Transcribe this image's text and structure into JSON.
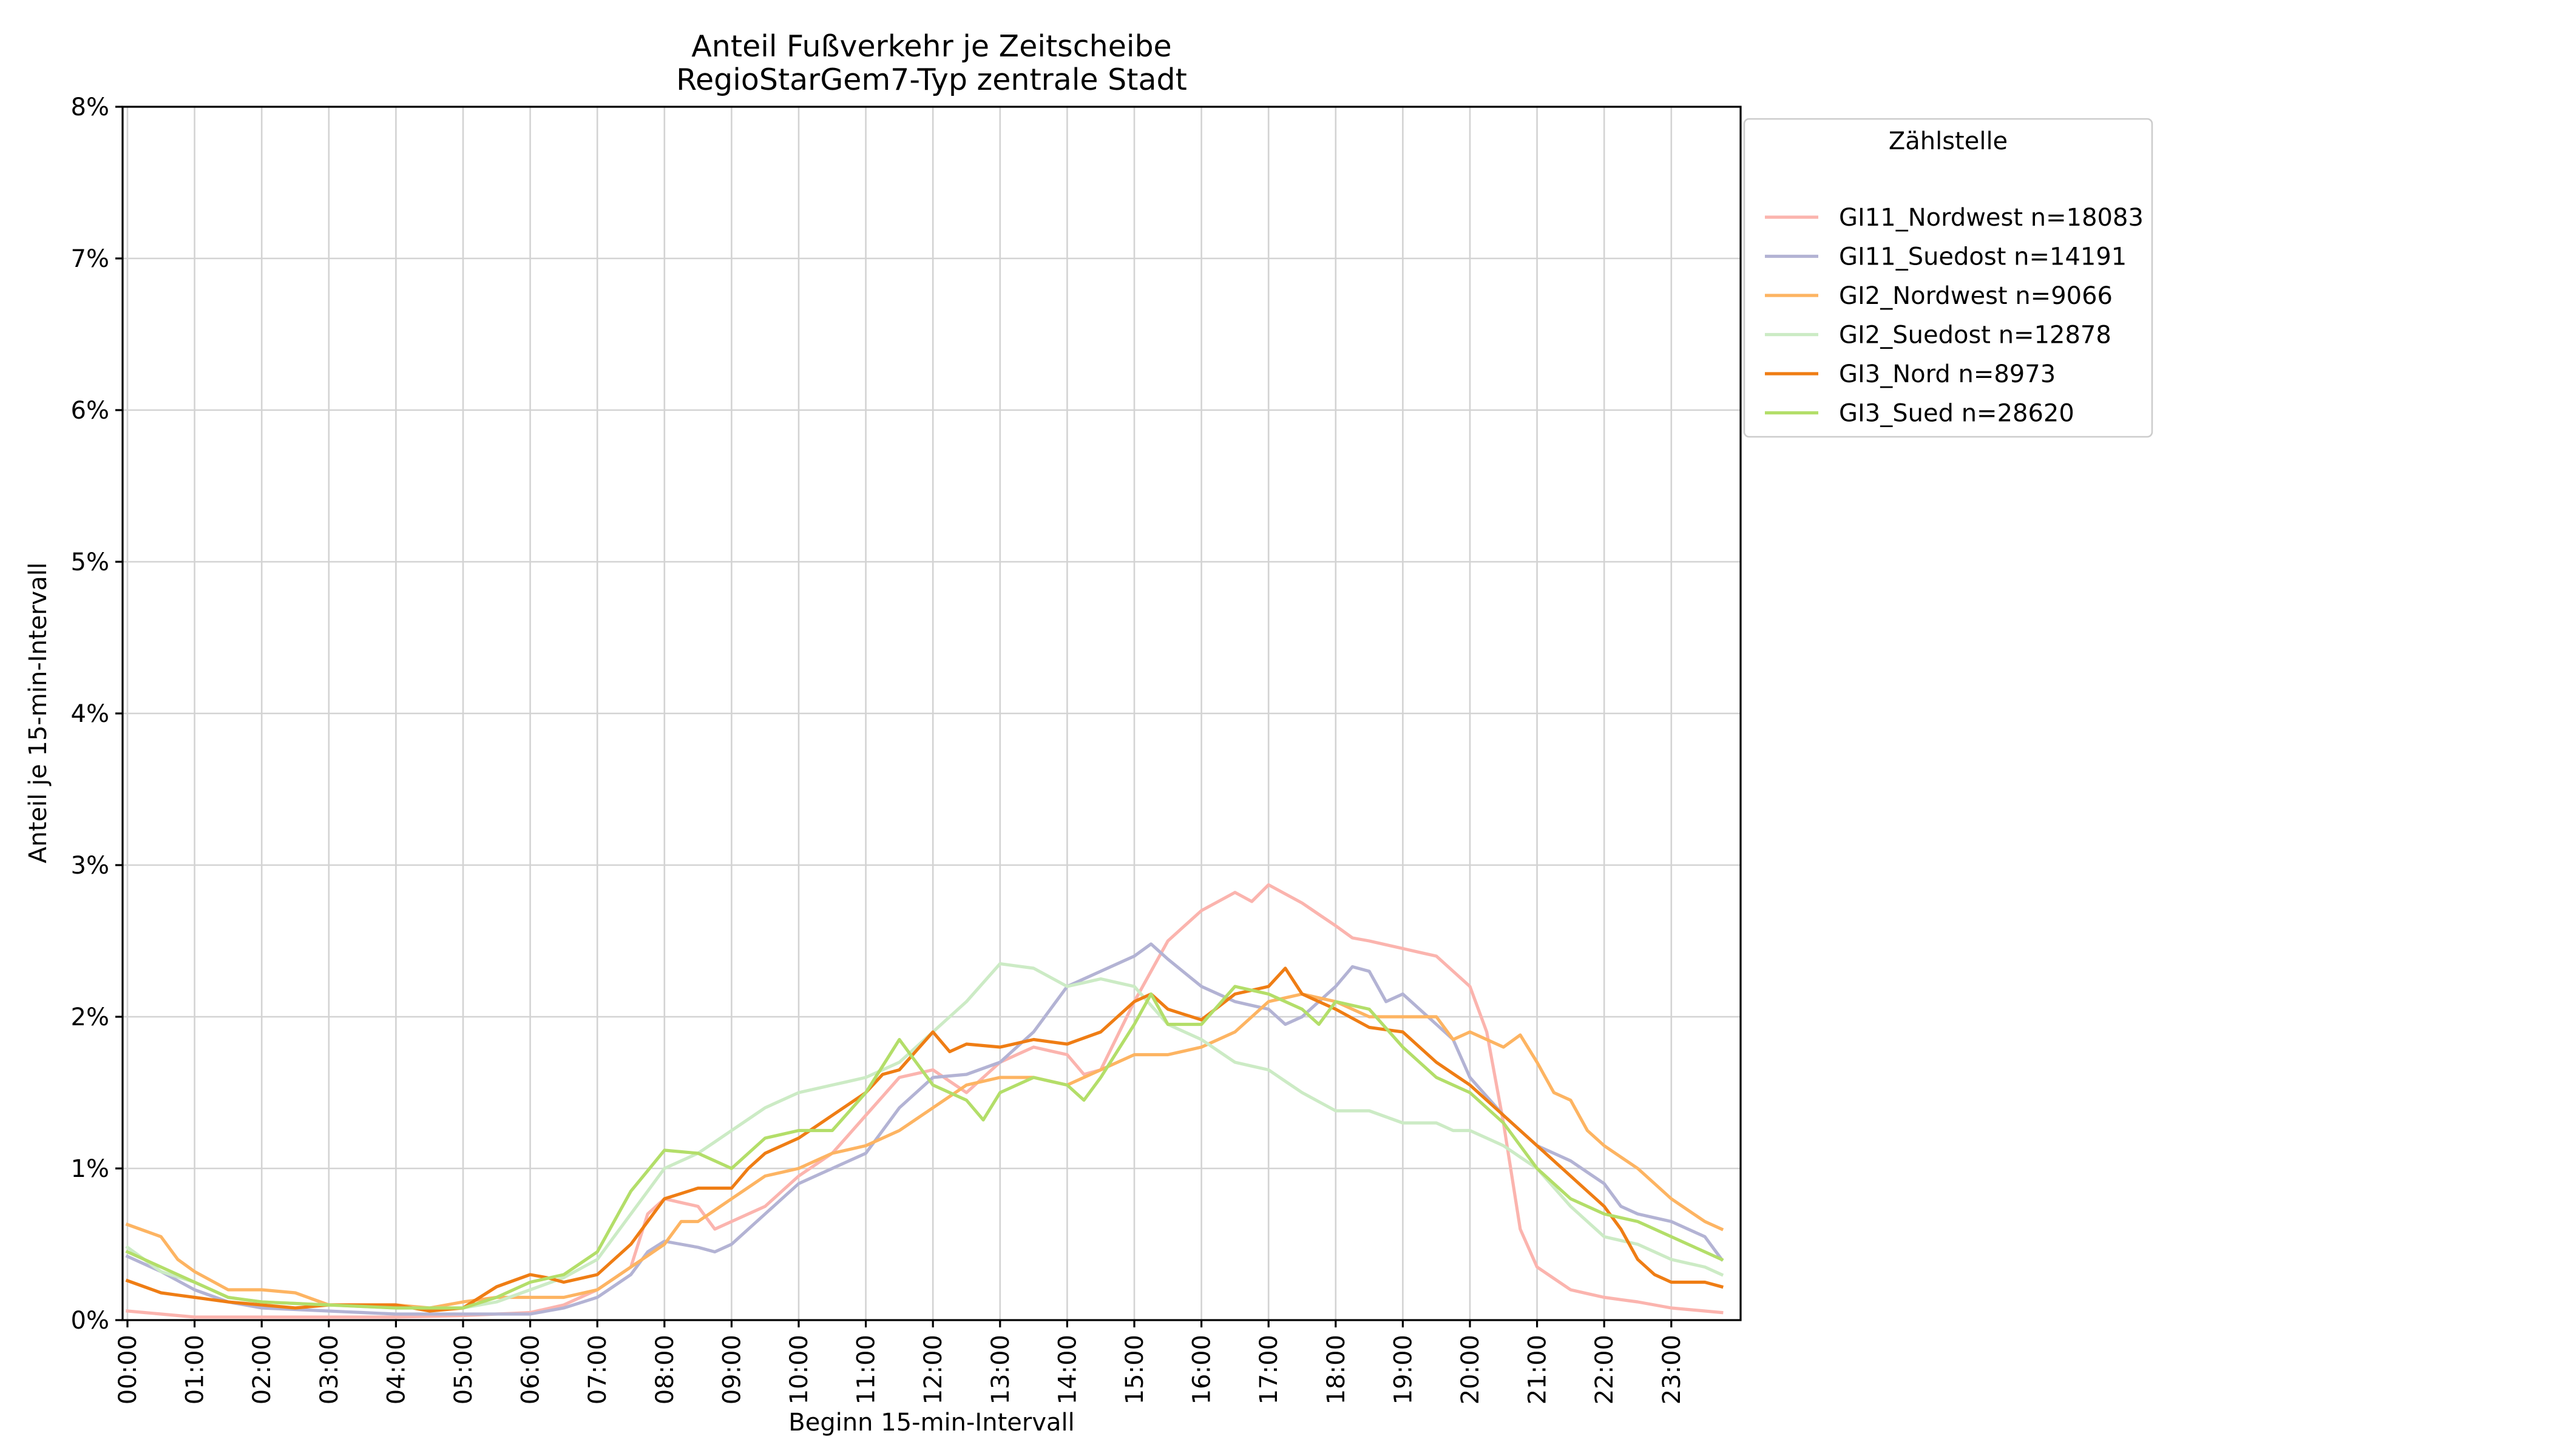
{
  "chart_data": {
    "type": "line",
    "title": "Anteil Fußverkehr je Zeitscheibe",
    "subtitle": "RegioStarGem7-Typ zentrale Stadt",
    "xlabel": "Beginn 15-min-Intervall",
    "ylabel": "Anteil je 15-min-Intervall",
    "ylim": [
      0,
      8
    ],
    "yticks": [
      "0%",
      "1%",
      "2%",
      "3%",
      "4%",
      "5%",
      "6%",
      "7%",
      "8%"
    ],
    "xticks": [
      "00:00",
      "01:00",
      "02:00",
      "03:00",
      "04:00",
      "05:00",
      "06:00",
      "07:00",
      "08:00",
      "09:00",
      "10:00",
      "11:00",
      "12:00",
      "13:00",
      "14:00",
      "15:00",
      "16:00",
      "17:00",
      "18:00",
      "19:00",
      "20:00",
      "21:00",
      "22:00",
      "23:00"
    ],
    "grid": true,
    "legend": {
      "title": "Zählstelle",
      "placement": "outside top-right"
    },
    "x_unit": "hours from 00:00, 15-min steps (96 intervals)",
    "series": [
      {
        "name": "GI11_Nordwest n=18083",
        "color": "#fbb4ae",
        "anchors": [
          [
            0,
            0.06
          ],
          [
            0.5,
            0.04
          ],
          [
            1,
            0.02
          ],
          [
            1.5,
            0.02
          ],
          [
            2,
            0.02
          ],
          [
            3,
            0.02
          ],
          [
            4,
            0.02
          ],
          [
            5,
            0.03
          ],
          [
            6,
            0.05
          ],
          [
            6.5,
            0.1
          ],
          [
            7,
            0.2
          ],
          [
            7.5,
            0.35
          ],
          [
            7.75,
            0.7
          ],
          [
            8,
            0.8
          ],
          [
            8.5,
            0.75
          ],
          [
            8.75,
            0.6
          ],
          [
            9,
            0.65
          ],
          [
            9.5,
            0.75
          ],
          [
            10,
            0.95
          ],
          [
            10.5,
            1.1
          ],
          [
            11,
            1.35
          ],
          [
            11.5,
            1.6
          ],
          [
            12,
            1.65
          ],
          [
            12.5,
            1.5
          ],
          [
            13,
            1.7
          ],
          [
            13.5,
            1.8
          ],
          [
            14,
            1.75
          ],
          [
            14.25,
            1.62
          ],
          [
            14.5,
            1.65
          ],
          [
            15,
            2.1
          ],
          [
            15.5,
            2.5
          ],
          [
            16,
            2.7
          ],
          [
            16.5,
            2.82
          ],
          [
            16.75,
            2.76
          ],
          [
            17,
            2.87
          ],
          [
            17.5,
            2.75
          ],
          [
            18,
            2.6
          ],
          [
            18.25,
            2.52
          ],
          [
            18.5,
            2.5
          ],
          [
            19,
            2.45
          ],
          [
            19.5,
            2.4
          ],
          [
            20,
            2.2
          ],
          [
            20.25,
            1.9
          ],
          [
            20.5,
            1.3
          ],
          [
            20.75,
            0.6
          ],
          [
            21,
            0.35
          ],
          [
            21.5,
            0.2
          ],
          [
            22,
            0.15
          ],
          [
            22.5,
            0.12
          ],
          [
            23,
            0.08
          ],
          [
            23.75,
            0.05
          ]
        ]
      },
      {
        "name": "GI11_Suedost n=14191",
        "color": "#b3b3d4",
        "anchors": [
          [
            0,
            0.42
          ],
          [
            0.5,
            0.32
          ],
          [
            1,
            0.2
          ],
          [
            1.5,
            0.12
          ],
          [
            2,
            0.08
          ],
          [
            3,
            0.06
          ],
          [
            4,
            0.04
          ],
          [
            5,
            0.04
          ],
          [
            6,
            0.04
          ],
          [
            6.5,
            0.08
          ],
          [
            7,
            0.15
          ],
          [
            7.5,
            0.3
          ],
          [
            7.75,
            0.45
          ],
          [
            8,
            0.52
          ],
          [
            8.5,
            0.48
          ],
          [
            8.75,
            0.45
          ],
          [
            9,
            0.5
          ],
          [
            9.5,
            0.7
          ],
          [
            10,
            0.9
          ],
          [
            10.5,
            1.0
          ],
          [
            11,
            1.1
          ],
          [
            11.5,
            1.4
          ],
          [
            12,
            1.6
          ],
          [
            12.5,
            1.62
          ],
          [
            13,
            1.7
          ],
          [
            13.5,
            1.9
          ],
          [
            14,
            2.2
          ],
          [
            14.5,
            2.3
          ],
          [
            15,
            2.4
          ],
          [
            15.25,
            2.48
          ],
          [
            15.5,
            2.38
          ],
          [
            16,
            2.2
          ],
          [
            16.5,
            2.1
          ],
          [
            17,
            2.05
          ],
          [
            17.25,
            1.95
          ],
          [
            17.5,
            2.0
          ],
          [
            18,
            2.2
          ],
          [
            18.25,
            2.33
          ],
          [
            18.5,
            2.3
          ],
          [
            18.75,
            2.1
          ],
          [
            19,
            2.15
          ],
          [
            19.5,
            1.95
          ],
          [
            19.75,
            1.85
          ],
          [
            20,
            1.6
          ],
          [
            20.5,
            1.35
          ],
          [
            21,
            1.15
          ],
          [
            21.5,
            1.05
          ],
          [
            22,
            0.9
          ],
          [
            22.25,
            0.75
          ],
          [
            22.5,
            0.7
          ],
          [
            23,
            0.65
          ],
          [
            23.5,
            0.55
          ],
          [
            23.75,
            0.4
          ]
        ]
      },
      {
        "name": "GI2_Nordwest n=9066",
        "color": "#fdb462",
        "anchors": [
          [
            0,
            0.63
          ],
          [
            0.5,
            0.55
          ],
          [
            0.75,
            0.4
          ],
          [
            1,
            0.32
          ],
          [
            1.5,
            0.2
          ],
          [
            2,
            0.2
          ],
          [
            2.5,
            0.18
          ],
          [
            3,
            0.1
          ],
          [
            3.5,
            0.1
          ],
          [
            4,
            0.1
          ],
          [
            4.5,
            0.08
          ],
          [
            5,
            0.12
          ],
          [
            5.5,
            0.15
          ],
          [
            6,
            0.15
          ],
          [
            6.5,
            0.15
          ],
          [
            7,
            0.2
          ],
          [
            7.5,
            0.35
          ],
          [
            8,
            0.5
          ],
          [
            8.25,
            0.65
          ],
          [
            8.5,
            0.65
          ],
          [
            9,
            0.8
          ],
          [
            9.5,
            0.95
          ],
          [
            10,
            1.0
          ],
          [
            10.5,
            1.1
          ],
          [
            11,
            1.15
          ],
          [
            11.5,
            1.25
          ],
          [
            12,
            1.4
          ],
          [
            12.5,
            1.55
          ],
          [
            13,
            1.6
          ],
          [
            13.5,
            1.6
          ],
          [
            14,
            1.55
          ],
          [
            14.5,
            1.65
          ],
          [
            15,
            1.75
          ],
          [
            15.5,
            1.75
          ],
          [
            16,
            1.8
          ],
          [
            16.5,
            1.9
          ],
          [
            17,
            2.1
          ],
          [
            17.5,
            2.15
          ],
          [
            18,
            2.1
          ],
          [
            18.5,
            2.0
          ],
          [
            19,
            2.0
          ],
          [
            19.5,
            2.0
          ],
          [
            19.75,
            1.85
          ],
          [
            20,
            1.9
          ],
          [
            20.5,
            1.8
          ],
          [
            20.75,
            1.88
          ],
          [
            21,
            1.7
          ],
          [
            21.25,
            1.5
          ],
          [
            21.5,
            1.45
          ],
          [
            21.75,
            1.25
          ],
          [
            22,
            1.15
          ],
          [
            22.5,
            1.0
          ],
          [
            23,
            0.8
          ],
          [
            23.5,
            0.65
          ],
          [
            23.75,
            0.6
          ]
        ]
      },
      {
        "name": "GI2_Suedost n=12878",
        "color": "#ccebc5",
        "anchors": [
          [
            0,
            0.48
          ],
          [
            0.5,
            0.32
          ],
          [
            1,
            0.25
          ],
          [
            1.5,
            0.15
          ],
          [
            2,
            0.12
          ],
          [
            3,
            0.1
          ],
          [
            4,
            0.08
          ],
          [
            5,
            0.08
          ],
          [
            5.5,
            0.12
          ],
          [
            6,
            0.2
          ],
          [
            6.5,
            0.28
          ],
          [
            7,
            0.4
          ],
          [
            7.5,
            0.7
          ],
          [
            8,
            1.0
          ],
          [
            8.5,
            1.1
          ],
          [
            9,
            1.25
          ],
          [
            9.5,
            1.4
          ],
          [
            10,
            1.5
          ],
          [
            10.5,
            1.55
          ],
          [
            11,
            1.6
          ],
          [
            11.5,
            1.7
          ],
          [
            12,
            1.9
          ],
          [
            12.5,
            2.1
          ],
          [
            13,
            2.35
          ],
          [
            13.5,
            2.32
          ],
          [
            14,
            2.2
          ],
          [
            14.5,
            2.25
          ],
          [
            15,
            2.2
          ],
          [
            15.5,
            1.95
          ],
          [
            16,
            1.85
          ],
          [
            16.5,
            1.7
          ],
          [
            17,
            1.65
          ],
          [
            17.5,
            1.5
          ],
          [
            18,
            1.38
          ],
          [
            18.5,
            1.38
          ],
          [
            19,
            1.3
          ],
          [
            19.5,
            1.3
          ],
          [
            19.75,
            1.25
          ],
          [
            20,
            1.25
          ],
          [
            20.5,
            1.15
          ],
          [
            21,
            1.0
          ],
          [
            21.5,
            0.75
          ],
          [
            22,
            0.55
          ],
          [
            22.5,
            0.5
          ],
          [
            23,
            0.4
          ],
          [
            23.5,
            0.35
          ],
          [
            23.75,
            0.3
          ]
        ]
      },
      {
        "name": "GI3_Nord n=8973",
        "color": "#ef7d14",
        "anchors": [
          [
            0,
            0.26
          ],
          [
            0.5,
            0.18
          ],
          [
            1,
            0.15
          ],
          [
            1.5,
            0.12
          ],
          [
            2,
            0.1
          ],
          [
            2.5,
            0.08
          ],
          [
            3,
            0.1
          ],
          [
            3.5,
            0.1
          ],
          [
            4,
            0.1
          ],
          [
            4.5,
            0.06
          ],
          [
            5,
            0.08
          ],
          [
            5.5,
            0.22
          ],
          [
            6,
            0.3
          ],
          [
            6.25,
            0.28
          ],
          [
            6.5,
            0.25
          ],
          [
            7,
            0.3
          ],
          [
            7.5,
            0.5
          ],
          [
            8,
            0.8
          ],
          [
            8.5,
            0.87
          ],
          [
            9,
            0.87
          ],
          [
            9.25,
            1.0
          ],
          [
            9.5,
            1.1
          ],
          [
            10,
            1.2
          ],
          [
            10.5,
            1.35
          ],
          [
            11,
            1.5
          ],
          [
            11.25,
            1.62
          ],
          [
            11.5,
            1.65
          ],
          [
            12,
            1.9
          ],
          [
            12.25,
            1.77
          ],
          [
            12.5,
            1.82
          ],
          [
            13,
            1.8
          ],
          [
            13.5,
            1.85
          ],
          [
            14,
            1.82
          ],
          [
            14.5,
            1.9
          ],
          [
            15,
            2.1
          ],
          [
            15.25,
            2.15
          ],
          [
            15.5,
            2.05
          ],
          [
            16,
            1.98
          ],
          [
            16.5,
            2.15
          ],
          [
            17,
            2.2
          ],
          [
            17.25,
            2.32
          ],
          [
            17.5,
            2.15
          ],
          [
            18,
            2.05
          ],
          [
            18.5,
            1.93
          ],
          [
            19,
            1.9
          ],
          [
            19.5,
            1.7
          ],
          [
            20,
            1.55
          ],
          [
            20.5,
            1.35
          ],
          [
            21,
            1.15
          ],
          [
            21.5,
            0.95
          ],
          [
            22,
            0.75
          ],
          [
            22.25,
            0.6
          ],
          [
            22.5,
            0.4
          ],
          [
            22.75,
            0.3
          ],
          [
            23,
            0.25
          ],
          [
            23.5,
            0.25
          ],
          [
            23.75,
            0.22
          ]
        ]
      },
      {
        "name": "GI3_Sued n=28620",
        "color": "#b3de69",
        "anchors": [
          [
            0,
            0.45
          ],
          [
            0.5,
            0.35
          ],
          [
            1,
            0.25
          ],
          [
            1.5,
            0.15
          ],
          [
            2,
            0.12
          ],
          [
            3,
            0.1
          ],
          [
            4,
            0.08
          ],
          [
            5,
            0.08
          ],
          [
            5.5,
            0.15
          ],
          [
            6,
            0.25
          ],
          [
            6.5,
            0.3
          ],
          [
            7,
            0.45
          ],
          [
            7.5,
            0.85
          ],
          [
            8,
            1.12
          ],
          [
            8.5,
            1.1
          ],
          [
            9,
            1.0
          ],
          [
            9.5,
            1.2
          ],
          [
            10,
            1.25
          ],
          [
            10.5,
            1.25
          ],
          [
            11,
            1.5
          ],
          [
            11.5,
            1.85
          ],
          [
            12,
            1.55
          ],
          [
            12.5,
            1.45
          ],
          [
            12.75,
            1.32
          ],
          [
            13,
            1.5
          ],
          [
            13.5,
            1.6
          ],
          [
            14,
            1.55
          ],
          [
            14.25,
            1.45
          ],
          [
            14.5,
            1.6
          ],
          [
            15,
            1.95
          ],
          [
            15.25,
            2.15
          ],
          [
            15.5,
            1.95
          ],
          [
            16,
            1.95
          ],
          [
            16.5,
            2.2
          ],
          [
            17,
            2.15
          ],
          [
            17.5,
            2.05
          ],
          [
            17.75,
            1.95
          ],
          [
            18,
            2.1
          ],
          [
            18.5,
            2.05
          ],
          [
            19,
            1.8
          ],
          [
            19.5,
            1.6
          ],
          [
            20,
            1.5
          ],
          [
            20.5,
            1.3
          ],
          [
            21,
            1.0
          ],
          [
            21.5,
            0.8
          ],
          [
            22,
            0.7
          ],
          [
            22.5,
            0.65
          ],
          [
            23,
            0.55
          ],
          [
            23.5,
            0.45
          ],
          [
            23.75,
            0.4
          ]
        ]
      }
    ]
  }
}
